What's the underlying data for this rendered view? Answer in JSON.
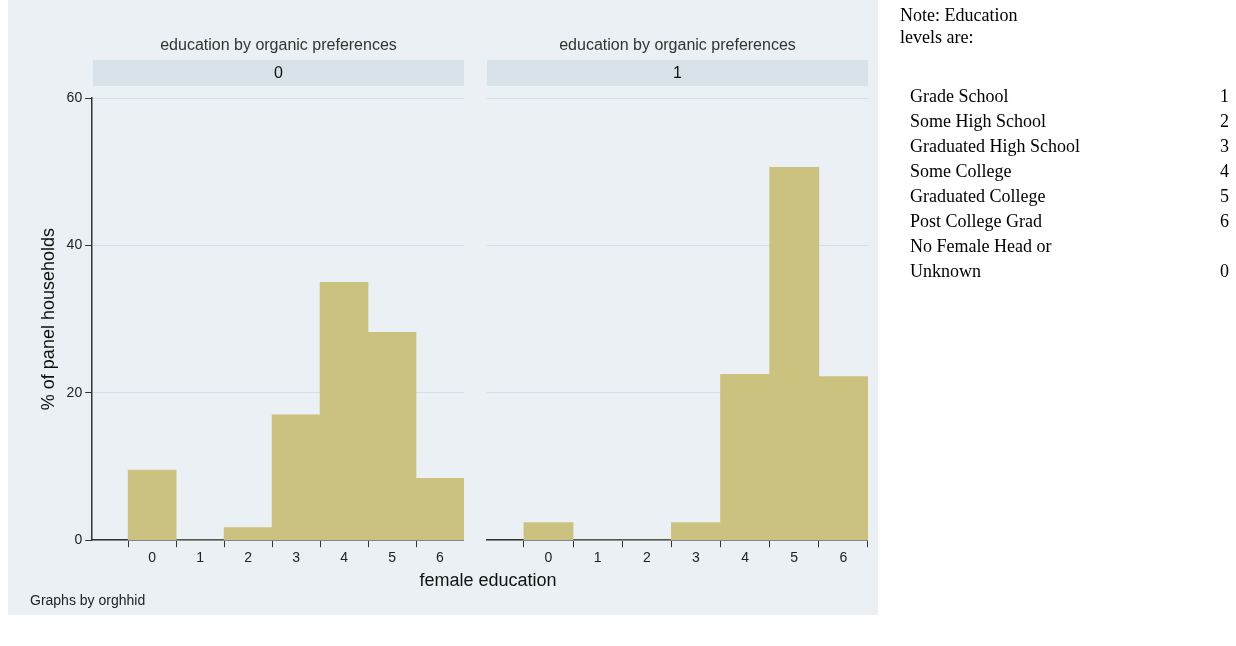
{
  "chart_data": [
    {
      "type": "histogram",
      "title": "education by organic preferences",
      "subtitle": "0",
      "xlabel": "female education",
      "ylabel": "% of panel households",
      "bins": [
        -0.5,
        0.5,
        1.5,
        2.5,
        3.5,
        4.5,
        5.5,
        6.5
      ],
      "values": [
        9.5,
        0,
        1.7,
        17.0,
        35.0,
        28.2,
        8.4
      ],
      "color": "#cbc27f",
      "xlim": [
        -1.25,
        6.5
      ],
      "xticks": [
        0,
        1,
        2,
        3,
        4,
        5,
        6
      ],
      "ylim": [
        0,
        60
      ],
      "yticks": [
        0,
        20,
        40,
        60
      ],
      "grid": "y",
      "annotations": [
        "Graphs by orghhid"
      ]
    },
    {
      "type": "histogram",
      "title": "education by organic preferences",
      "subtitle": "1",
      "bins": [
        -0.5,
        0.5,
        1.5,
        2.5,
        3.5,
        4.5,
        5.5,
        6.5
      ],
      "values": [
        2.4,
        0,
        0,
        2.4,
        22.5,
        50.6,
        22.2
      ],
      "color": "#cbc27f",
      "xlim": [
        -1.25,
        6.5
      ],
      "xticks": [
        0,
        1,
        2,
        3,
        4,
        5,
        6
      ],
      "ylim": [
        0,
        60
      ],
      "yticks": [
        0,
        20,
        40,
        60
      ],
      "grid": "y",
      "tick_labels": "x"
    },
    {
      "type": "other",
      "title": "Note: Education levels are:",
      "annotations": [
        "Grade School 1",
        "Some High School 2",
        "Graduated High School 3",
        "Some College 4",
        "Graduated College 5",
        "Post College Grad 6",
        "No Female Head or Unknown 0"
      ]
    }
  ]
}
